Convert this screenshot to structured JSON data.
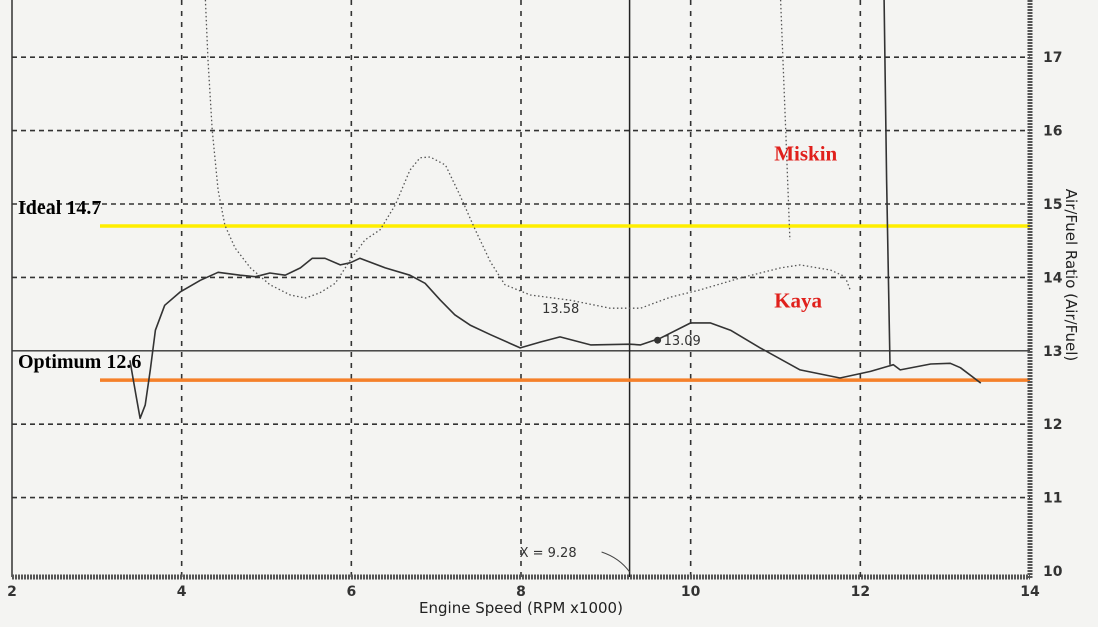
{
  "chart_data": {
    "type": "line",
    "xlabel": "Engine Speed (RPM x1000)",
    "ylabel": "Air/Fuel Ratio (Air/Fuel)",
    "xlim": [
      2,
      14
    ],
    "ylim": [
      10,
      17.78
    ],
    "x_ticks": [
      "2",
      "4",
      "6",
      "8",
      "10",
      "12",
      "14"
    ],
    "y_ticks": [
      "10",
      "11",
      "12",
      "13",
      "14",
      "15",
      "16",
      "17"
    ],
    "grid": true,
    "series": [
      {
        "style": "solid",
        "color": "#333333",
        "points": [
          [
            3.39,
            12.87
          ],
          [
            3.46,
            12.4
          ],
          [
            3.51,
            12.08
          ],
          [
            3.57,
            12.26
          ],
          [
            3.63,
            12.74
          ],
          [
            3.69,
            13.28
          ],
          [
            3.8,
            13.62
          ],
          [
            3.98,
            13.8
          ],
          [
            4.22,
            13.96
          ],
          [
            4.43,
            14.07
          ],
          [
            4.69,
            14.03
          ],
          [
            4.87,
            14.01
          ],
          [
            5.04,
            14.06
          ],
          [
            5.22,
            14.03
          ],
          [
            5.4,
            14.13
          ],
          [
            5.54,
            14.26
          ],
          [
            5.69,
            14.26
          ],
          [
            5.87,
            14.17
          ],
          [
            5.99,
            14.2
          ],
          [
            6.1,
            14.26
          ],
          [
            6.4,
            14.13
          ],
          [
            6.69,
            14.03
          ],
          [
            6.87,
            13.92
          ],
          [
            7.05,
            13.69
          ],
          [
            7.22,
            13.49
          ],
          [
            7.4,
            13.35
          ],
          [
            7.64,
            13.22
          ],
          [
            7.99,
            13.04
          ],
          [
            8.23,
            13.12
          ],
          [
            8.46,
            13.19
          ],
          [
            8.82,
            13.08
          ],
          [
            9.28,
            13.09
          ],
          [
            9.41,
            13.08
          ],
          [
            9.64,
            13.17
          ],
          [
            10.0,
            13.38
          ],
          [
            10.23,
            13.38
          ],
          [
            10.47,
            13.28
          ],
          [
            10.82,
            13.04
          ],
          [
            11.29,
            12.74
          ],
          [
            11.76,
            12.63
          ],
          [
            12.12,
            12.72
          ],
          [
            12.39,
            12.81
          ],
          [
            12.47,
            12.74
          ],
          [
            12.83,
            12.82
          ],
          [
            13.06,
            12.83
          ],
          [
            13.18,
            12.77
          ],
          [
            13.42,
            12.56
          ]
        ]
      },
      {
        "style": "solid",
        "color": "#333333",
        "points": [
          [
            12.28,
            17.78
          ],
          [
            12.31,
            15.33
          ],
          [
            12.35,
            12.81
          ]
        ]
      },
      {
        "style": "dotted",
        "color": "#555555",
        "points": [
          [
            4.28,
            17.78
          ],
          [
            4.31,
            16.96
          ],
          [
            4.36,
            16.01
          ],
          [
            4.43,
            15.19
          ],
          [
            4.51,
            14.71
          ],
          [
            4.63,
            14.4
          ],
          [
            4.81,
            14.13
          ],
          [
            5.04,
            13.9
          ],
          [
            5.28,
            13.76
          ],
          [
            5.46,
            13.72
          ],
          [
            5.63,
            13.79
          ],
          [
            5.81,
            13.92
          ],
          [
            5.99,
            14.24
          ],
          [
            6.16,
            14.51
          ],
          [
            6.34,
            14.65
          ],
          [
            6.52,
            14.99
          ],
          [
            6.69,
            15.46
          ],
          [
            6.81,
            15.63
          ],
          [
            6.93,
            15.64
          ],
          [
            7.11,
            15.53
          ],
          [
            7.28,
            15.12
          ],
          [
            7.46,
            14.65
          ],
          [
            7.64,
            14.21
          ],
          [
            7.81,
            13.9
          ],
          [
            8.11,
            13.76
          ],
          [
            8.58,
            13.69
          ],
          [
            9.05,
            13.58
          ],
          [
            9.41,
            13.58
          ],
          [
            9.76,
            13.73
          ],
          [
            10.11,
            13.83
          ],
          [
            10.58,
            13.99
          ],
          [
            11.06,
            14.13
          ],
          [
            11.29,
            14.17
          ],
          [
            11.65,
            14.1
          ],
          [
            11.82,
            14.01
          ],
          [
            11.88,
            13.83
          ]
        ]
      },
      {
        "style": "dotted",
        "color": "#555555",
        "points": [
          [
            11.06,
            17.78
          ],
          [
            11.12,
            16.01
          ],
          [
            11.17,
            14.51
          ]
        ]
      }
    ],
    "reference_lines": [
      {
        "label": "Ideal 14.7",
        "value": 14.7,
        "color": "#ffee00"
      },
      {
        "label": "Optimum 12.6",
        "value": 12.6,
        "color": "#f5802a"
      }
    ],
    "cursor": {
      "x": 9.28,
      "label": "X = 9.28"
    },
    "annotations": [
      {
        "text": "13.58",
        "x": 9.05,
        "y": 13.58
      },
      {
        "text": "13.09",
        "x": 9.28,
        "y": 13.09,
        "marker": true
      }
    ],
    "series_labels": [
      {
        "text": "Miskin",
        "x": 11.15,
        "y": 15.7,
        "color": "#e0201c"
      },
      {
        "text": "Kaya",
        "x": 11.15,
        "y": 13.7,
        "color": "#e0201c"
      }
    ]
  }
}
